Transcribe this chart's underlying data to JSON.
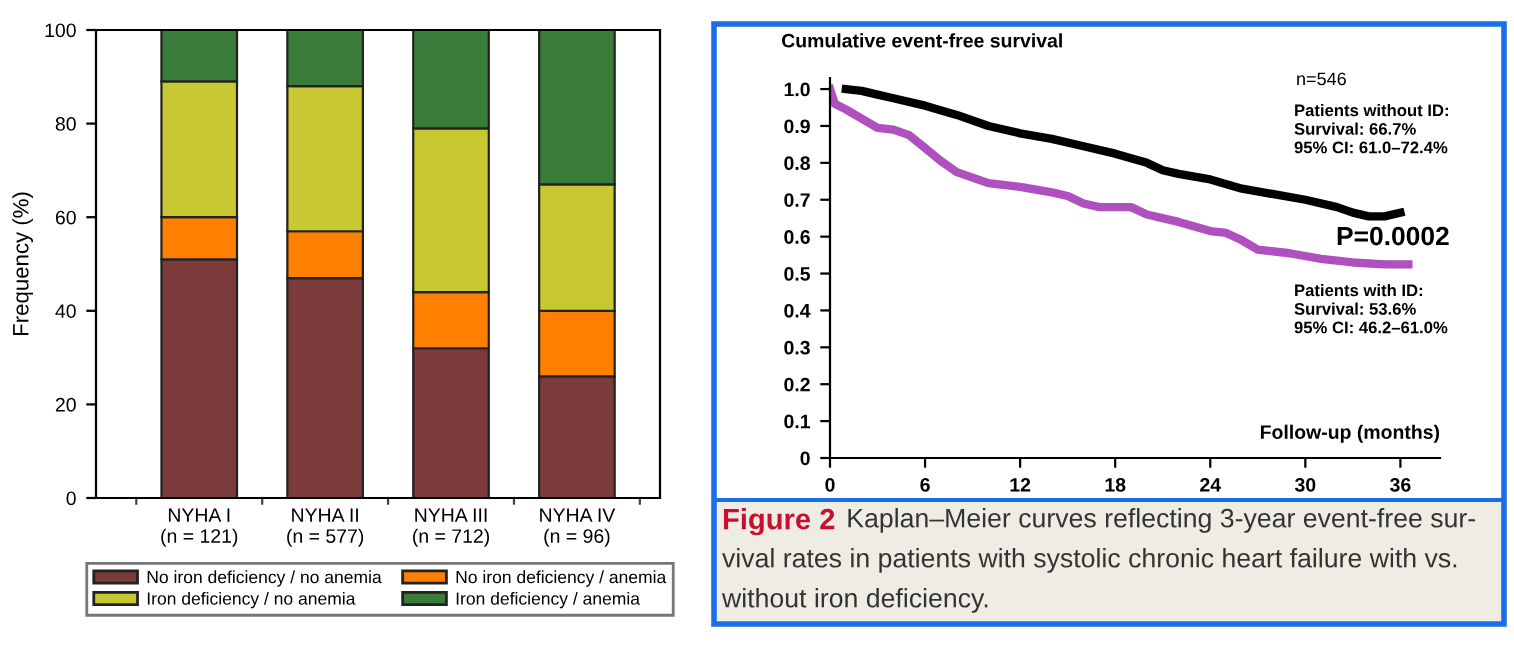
{
  "chart_data": [
    {
      "type": "bar",
      "stacked": true,
      "ylabel": "Frequency (%)",
      "categories": [
        "NYHA I\n(n = 121)",
        "NYHA II\n(n = 577)",
        "NYHA III\n(n = 712)",
        "NYHA IV\n(n = 96)"
      ],
      "series": [
        {
          "name": "No iron deficiency / no anemia",
          "color": "#7b3b3b",
          "values": [
            51,
            47,
            32,
            26
          ]
        },
        {
          "name": "No iron deficiency / anemia",
          "color": "#ff8000",
          "values": [
            9,
            10,
            12,
            14
          ]
        },
        {
          "name": "Iron deficiency / no anemia",
          "color": "#c8c832",
          "values": [
            29,
            31,
            35,
            27
          ]
        },
        {
          "name": "Iron deficiency / anemia",
          "color": "#3a7d3a",
          "values": [
            11,
            12,
            21,
            33
          ]
        }
      ],
      "ylim": [
        0,
        100
      ],
      "yticks": [
        0,
        20,
        40,
        60,
        80,
        100
      ],
      "grid": false,
      "legend": "bottom"
    },
    {
      "type": "line",
      "title": "Figure 2",
      "subtitle": "Kaplan–Meier curves reflecting 3-year event-free sur-\nvival rates in patients with systolic chronic heart failure with vs.\nwithout iron deficiency.",
      "ylabel": "Cumulative event-free survival",
      "xlabel": "Follow-up (months)",
      "series": [
        {
          "color": "#000000",
          "x": [
            1,
            2,
            3,
            4,
            6,
            8,
            10,
            12,
            14,
            16,
            18,
            20,
            21,
            22,
            24,
            26,
            28,
            30,
            32,
            33,
            34,
            35,
            36
          ],
          "values": [
            1.0,
            0.995,
            0.985,
            0.975,
            0.955,
            0.93,
            0.9,
            0.88,
            0.865,
            0.845,
            0.825,
            0.8,
            0.78,
            0.77,
            0.755,
            0.73,
            0.715,
            0.7,
            0.68,
            0.665,
            0.655,
            0.655,
            0.665
          ]
        },
        {
          "color": "#b04fc0",
          "x": [
            0,
            0.3,
            1,
            2,
            3,
            4,
            5,
            6,
            7,
            8,
            9,
            10,
            12,
            14,
            15,
            16,
            17,
            19,
            20,
            22,
            24,
            25,
            26,
            27,
            29,
            31,
            33,
            35,
            36.5
          ],
          "values": [
            1.0,
            0.96,
            0.945,
            0.92,
            0.895,
            0.89,
            0.875,
            0.84,
            0.805,
            0.775,
            0.76,
            0.745,
            0.735,
            0.72,
            0.71,
            0.69,
            0.68,
            0.68,
            0.66,
            0.64,
            0.615,
            0.61,
            0.59,
            0.565,
            0.555,
            0.54,
            0.53,
            0.525,
            0.525
          ]
        }
      ],
      "xlim": [
        0,
        38.5
      ],
      "xticks": [
        0,
        6,
        12,
        18,
        24,
        30,
        36
      ],
      "ylim": [
        0,
        1.03
      ],
      "yticks": [
        {
          "value": 0,
          "label": "0"
        },
        {
          "value": 0.1,
          "label": "0.1"
        },
        {
          "value": 0.2,
          "label": "0.2"
        },
        {
          "value": 0.3,
          "label": "0.3"
        },
        {
          "value": 0.4,
          "label": "0.4"
        },
        {
          "value": 0.5,
          "label": "0.5"
        },
        {
          "value": 0.6,
          "label": "0.6"
        },
        {
          "value": 0.7,
          "label": "0.7"
        },
        {
          "value": 0.8,
          "label": "0.8"
        },
        {
          "value": 0.9,
          "label": "0.9"
        },
        {
          "value": 1.0,
          "label": "1.0"
        }
      ],
      "grid": false,
      "marker": "none",
      "line_style": "solid",
      "annotations": [
        "n=546",
        "Patients without ID:\nSurvival: 66.7%\n95% CI: 61.0–72.4%",
        "P=0.0002",
        "Patients with ID:\nSurvival: 53.6%\n95% CI: 46.2–61.0%"
      ]
    }
  ]
}
